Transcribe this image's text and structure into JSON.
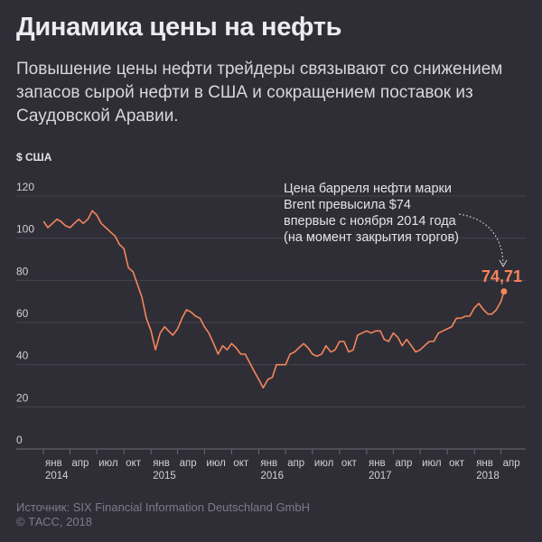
{
  "title": "Динамика цены на нефть",
  "subtitle": "Повышение цены нефти трейдеры связывают со снижением запасов сырой нефти в США и сокращением поставок из Саудовской Аравии.",
  "footer": {
    "source": "Источник: SIX Financial Information Deutschland GmbH",
    "copyright": "© ТАСС, 2018"
  },
  "colors": {
    "background": "#2f2e37",
    "line": "#f5855a",
    "grid": "#45444e"
  },
  "chart_data": {
    "type": "line",
    "ylabel": "$ США",
    "ylim": [
      0,
      120
    ],
    "yticks": [
      0,
      20,
      40,
      60,
      80,
      100,
      120
    ],
    "grid": true,
    "xlim": [
      "2014-01-01",
      "2018-04-30"
    ],
    "xticks": [
      {
        "date": "2014-01-01",
        "label": "янв",
        "year": "2014"
      },
      {
        "date": "2014-04-01",
        "label": "апр"
      },
      {
        "date": "2014-07-01",
        "label": "июл"
      },
      {
        "date": "2014-10-01",
        "label": "окт"
      },
      {
        "date": "2015-01-01",
        "label": "янв",
        "year": "2015"
      },
      {
        "date": "2015-04-01",
        "label": "апр"
      },
      {
        "date": "2015-07-01",
        "label": "июл"
      },
      {
        "date": "2015-10-01",
        "label": "окт"
      },
      {
        "date": "2016-01-01",
        "label": "янв",
        "year": "2016"
      },
      {
        "date": "2016-04-01",
        "label": "апр"
      },
      {
        "date": "2016-07-01",
        "label": "июл"
      },
      {
        "date": "2016-10-01",
        "label": "окт"
      },
      {
        "date": "2017-01-01",
        "label": "янв",
        "year": "2017"
      },
      {
        "date": "2017-04-01",
        "label": "апр"
      },
      {
        "date": "2017-07-01",
        "label": "июл"
      },
      {
        "date": "2017-10-01",
        "label": "окт"
      },
      {
        "date": "2018-01-01",
        "label": "янв",
        "year": "2018"
      },
      {
        "date": "2018-04-01",
        "label": "апр"
      }
    ],
    "series": [
      {
        "x": [
          "2014-01-02",
          "2014-01-16",
          "2014-02-01",
          "2014-02-16",
          "2014-03-01",
          "2014-03-16",
          "2014-04-01",
          "2014-04-16",
          "2014-05-01",
          "2014-05-16",
          "2014-06-01",
          "2014-06-16",
          "2014-07-01",
          "2014-07-16",
          "2014-08-01",
          "2014-08-16",
          "2014-09-01",
          "2014-09-16",
          "2014-10-01",
          "2014-10-16",
          "2014-11-01",
          "2014-11-16",
          "2014-12-01",
          "2014-12-16",
          "2015-01-01",
          "2015-01-16",
          "2015-02-01",
          "2015-02-16",
          "2015-03-01",
          "2015-03-16",
          "2015-04-01",
          "2015-04-16",
          "2015-05-01",
          "2015-05-16",
          "2015-06-01",
          "2015-06-16",
          "2015-07-01",
          "2015-07-16",
          "2015-08-01",
          "2015-08-16",
          "2015-09-01",
          "2015-09-16",
          "2015-10-01",
          "2015-10-16",
          "2015-11-01",
          "2015-11-16",
          "2015-12-01",
          "2015-12-16",
          "2016-01-01",
          "2016-01-16",
          "2016-02-01",
          "2016-02-16",
          "2016-03-01",
          "2016-03-16",
          "2016-04-01",
          "2016-04-16",
          "2016-05-01",
          "2016-05-16",
          "2016-06-01",
          "2016-06-16",
          "2016-07-01",
          "2016-07-16",
          "2016-08-01",
          "2016-08-16",
          "2016-09-01",
          "2016-09-16",
          "2016-10-01",
          "2016-10-16",
          "2016-11-01",
          "2016-11-16",
          "2016-12-01",
          "2016-12-16",
          "2017-01-01",
          "2017-01-16",
          "2017-02-01",
          "2017-02-16",
          "2017-03-01",
          "2017-03-16",
          "2017-04-01",
          "2017-04-16",
          "2017-05-01",
          "2017-05-16",
          "2017-06-01",
          "2017-06-16",
          "2017-07-01",
          "2017-07-16",
          "2017-08-01",
          "2017-08-16",
          "2017-09-01",
          "2017-09-16",
          "2017-10-01",
          "2017-10-16",
          "2017-11-01",
          "2017-11-16",
          "2017-12-01",
          "2017-12-16",
          "2018-01-01",
          "2018-01-16",
          "2018-02-01",
          "2018-02-16",
          "2018-03-01",
          "2018-03-16",
          "2018-04-01",
          "2018-04-11"
        ],
        "y": [
          108,
          105,
          107,
          109,
          108,
          106,
          105,
          107,
          109,
          107,
          109,
          113,
          111,
          107,
          105,
          103,
          101,
          97,
          95,
          86,
          84,
          78,
          72,
          62,
          56,
          47,
          55,
          58,
          56,
          54,
          57,
          62,
          66,
          65,
          63,
          62,
          58,
          55,
          50,
          45,
          49,
          47,
          50,
          48,
          45,
          45,
          41,
          37,
          33,
          29,
          33,
          34,
          40,
          40,
          40,
          45,
          46,
          48,
          50,
          48,
          45,
          44,
          45,
          49,
          46,
          47,
          51,
          51,
          46,
          47,
          54,
          55,
          56,
          55,
          56,
          56,
          52,
          51,
          55,
          53,
          49,
          52,
          49,
          46,
          47,
          49,
          51,
          51,
          55,
          56,
          57,
          58,
          62,
          62,
          63,
          63,
          67,
          69,
          66,
          64,
          64,
          66,
          70,
          74.71
        ]
      }
    ],
    "last_value_label": "74,71",
    "annotation": "Цена барреля нефти марки Brent превысила $74 впервые с ноября 2014 года (на момент закрытия торгов)"
  }
}
